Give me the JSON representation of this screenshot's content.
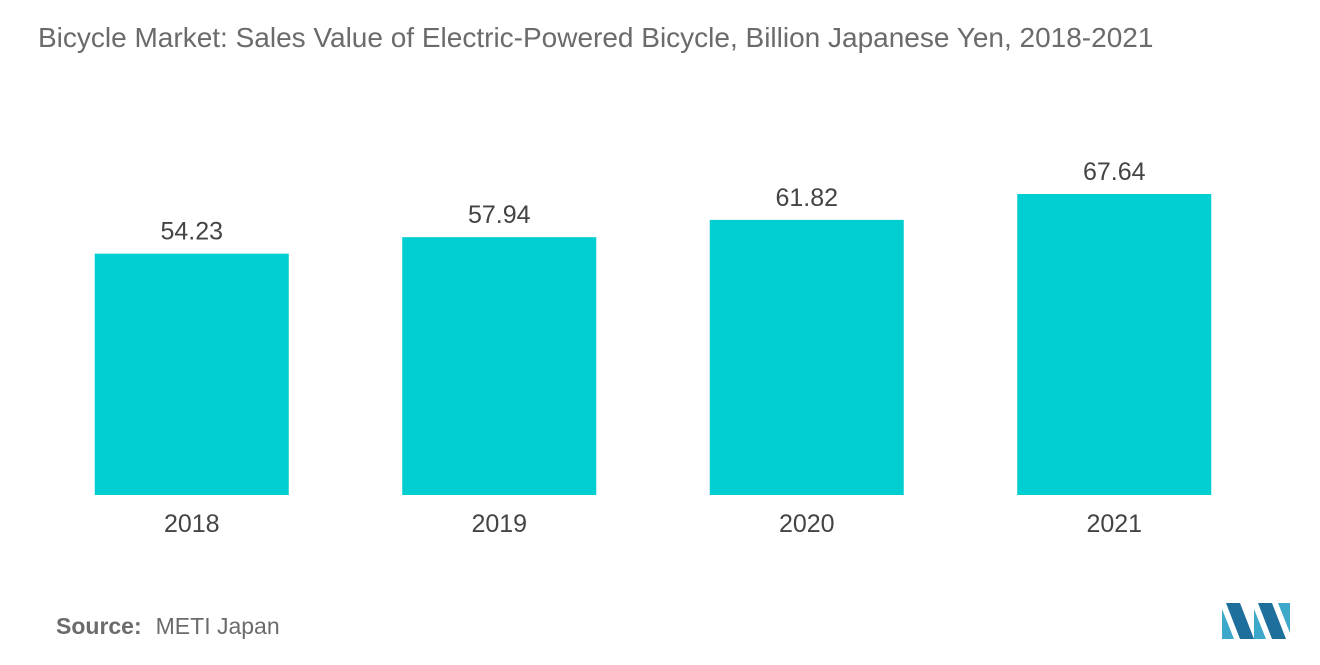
{
  "title": "Bicycle Market: Sales Value of Electric-Powered Bicycle, Billion Japanese Yen, 2018-2021",
  "source": {
    "label": "Source:",
    "value": "METI Japan"
  },
  "logo_icon": "mordor-intelligence-logo-icon",
  "colors": {
    "bar": "#00CED1",
    "text": "#444444",
    "title": "#6b6b6b"
  },
  "chart_data": {
    "type": "bar",
    "categories": [
      "2018",
      "2019",
      "2020",
      "2021"
    ],
    "values": [
      54.23,
      57.94,
      61.82,
      67.64
    ],
    "value_labels": [
      "54.23",
      "57.94",
      "61.82",
      "67.64"
    ],
    "title": "Bicycle Market: Sales Value of Electric-Powered Bicycle, Billion Japanese Yen, 2018-2021",
    "xlabel": "",
    "ylabel": "",
    "ylim": [
      0,
      80
    ],
    "grid": false,
    "legend": "none",
    "data_labels": true
  }
}
